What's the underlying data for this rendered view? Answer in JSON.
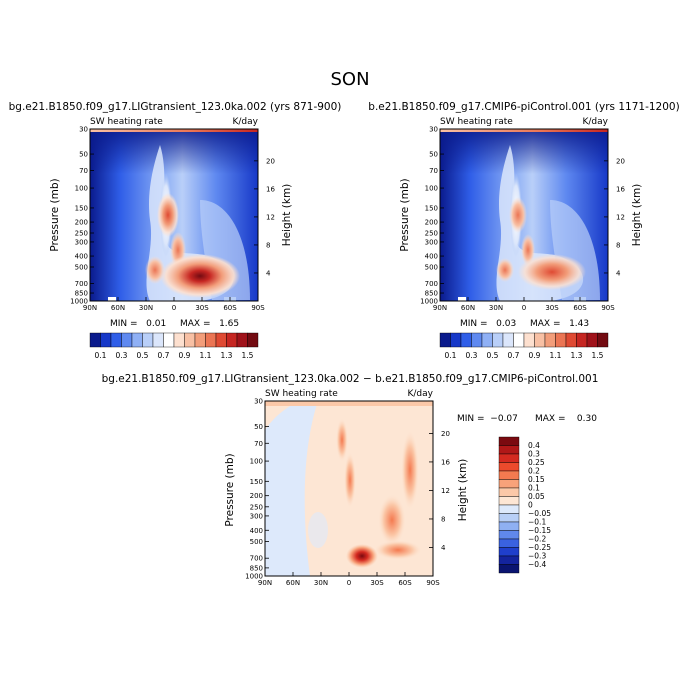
{
  "page_title": "SON",
  "chart_data": [
    {
      "type": "heatmap",
      "title": "bg.e21.B1850.f09_g17.LIGtransient_123.0ka.002 (yrs 871-900)",
      "left_label": "SW heating rate",
      "right_label": "K/day",
      "xlabel": "",
      "ylabel": "Pressure (mb)",
      "y2label": "Height (km)",
      "x_ticks": [
        "90N",
        "60N",
        "30N",
        "0",
        "30S",
        "60S",
        "90S"
      ],
      "y_ticks": [
        30,
        50,
        70,
        100,
        150,
        200,
        250,
        300,
        400,
        500,
        700,
        850,
        1000
      ],
      "y2_ticks": [
        20,
        16,
        12,
        8,
        4
      ],
      "min_text": "MIN =   0.01",
      "max_text": "MAX =   1.65",
      "colorbar_levels": [
        "0.1",
        "0.3",
        "0.5",
        "0.7",
        "0.9",
        "1.1",
        "1.3",
        "1.5"
      ],
      "colorbar_colors": [
        "#0a1a8c",
        "#1638c8",
        "#2f5ee8",
        "#5f89f0",
        "#8fb0f5",
        "#b9cff8",
        "#dbe6fb",
        "#ffffff",
        "#fde0cf",
        "#f8c0a4",
        "#f29d7a",
        "#eb7554",
        "#df4a33",
        "#c62622",
        "#a0121a",
        "#730b12"
      ],
      "zmin": 0.01,
      "zmax": 1.65
    },
    {
      "type": "heatmap",
      "title": "b.e21.B1850.f09_g17.CMIP6-piControl.001 (yrs 1171-1200)",
      "left_label": "SW heating rate",
      "right_label": "K/day",
      "xlabel": "",
      "ylabel": "Pressure (mb)",
      "y2label": "Height (km)",
      "x_ticks": [
        "90N",
        "60N",
        "30N",
        "0",
        "30S",
        "60S",
        "90S"
      ],
      "y_ticks": [
        30,
        50,
        70,
        100,
        150,
        200,
        250,
        300,
        400,
        500,
        700,
        850,
        1000
      ],
      "y2_ticks": [
        20,
        16,
        12,
        8,
        4
      ],
      "min_text": "MIN =   0.03",
      "max_text": "MAX =   1.43",
      "colorbar_levels": [
        "0.1",
        "0.3",
        "0.5",
        "0.7",
        "0.9",
        "1.1",
        "1.3",
        "1.5"
      ],
      "colorbar_colors": [
        "#0a1a8c",
        "#1638c8",
        "#2f5ee8",
        "#5f89f0",
        "#8fb0f5",
        "#b9cff8",
        "#dbe6fb",
        "#ffffff",
        "#fde0cf",
        "#f8c0a4",
        "#f29d7a",
        "#eb7554",
        "#df4a33",
        "#c62622",
        "#a0121a",
        "#730b12"
      ],
      "zmin": 0.03,
      "zmax": 1.43
    },
    {
      "type": "heatmap",
      "title": "bg.e21.B1850.f09_g17.LIGtransient_123.0ka.002 − b.e21.B1850.f09_g17.CMIP6-piControl.001",
      "left_label": "SW heating rate",
      "right_label": "K/day",
      "xlabel": "",
      "ylabel": "Pressure (mb)",
      "y2label": "Height (km)",
      "x_ticks": [
        "90N",
        "60N",
        "30N",
        "0",
        "30S",
        "60S",
        "90S"
      ],
      "y_ticks": [
        30,
        50,
        70,
        100,
        150,
        200,
        250,
        300,
        400,
        500,
        700,
        850,
        1000
      ],
      "y2_ticks": [
        20,
        16,
        12,
        8,
        4
      ],
      "min_text": "MIN =  −0.07",
      "max_text": "MAX =    0.30",
      "colorbar_levels": [
        "0.4",
        "0.3",
        "0.25",
        "0.2",
        "0.15",
        "0.1",
        "0.05",
        "0",
        "−0.05",
        "−0.1",
        "−0.15",
        "−0.2",
        "−0.25",
        "−0.3",
        "−0.4"
      ],
      "colorbar_colors": [
        "#7a0a10",
        "#b01818",
        "#d42a20",
        "#ec4a2c",
        "#f47a50",
        "#f8a27a",
        "#fbc8a8",
        "#fde6d4",
        "#dde9fb",
        "#b8cff6",
        "#8fb0f2",
        "#6088ec",
        "#3a62e0",
        "#1f3fcc",
        "#14249e",
        "#0a1470"
      ],
      "zmin": -0.07,
      "zmax": 0.3
    }
  ]
}
